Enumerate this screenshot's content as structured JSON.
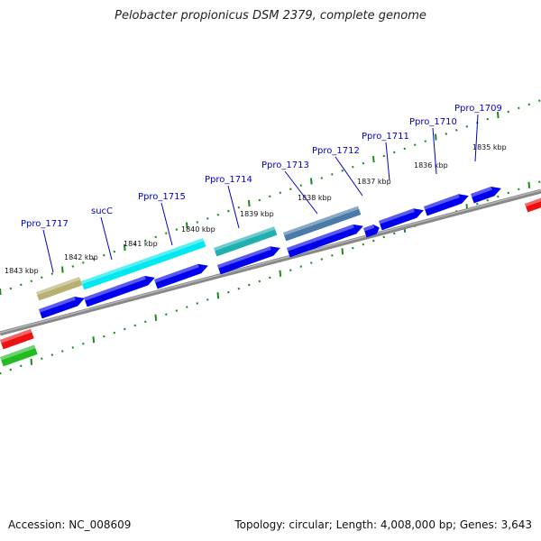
{
  "header": {
    "title": "Pelobacter propionicus DSM 2379, complete genome"
  },
  "footer": {
    "accession": "Accession: NC_008609",
    "topology": "Topology: circular; Length: 4,008,000 bp; Genes: 3,643"
  },
  "map": {
    "kbp_labels": [
      "1843 kbp",
      "1842 kbp",
      "1841 kbp",
      "1840 kbp",
      "1839 kbp",
      "1838 kbp",
      "1837 kbp",
      "1836 kbp",
      "1835 kbp"
    ],
    "gene_labels": [
      "Ppro_1717",
      "sucC",
      "Ppro_1715",
      "Ppro_1714",
      "Ppro_1713",
      "Ppro_1712",
      "Ppro_1711",
      "Ppro_1710",
      "Ppro_1709"
    ],
    "colors": {
      "cds": "#0000ee",
      "backbone": "#888888",
      "tick": "#1a8a1a",
      "label": "#0000cc",
      "khaki": "#b8b070",
      "cyan": "#00e8f0",
      "teal": "#20b0b0",
      "steelblue": "#4a7aa8",
      "red": "#ee1111",
      "green": "#22bb22"
    }
  }
}
